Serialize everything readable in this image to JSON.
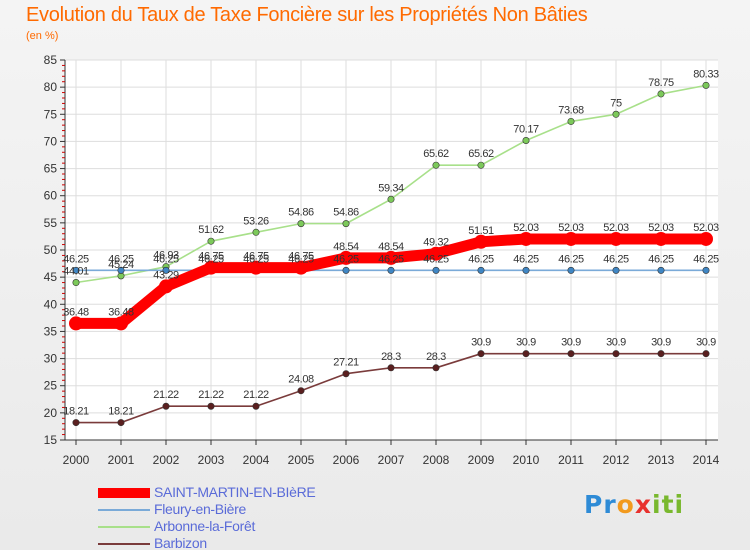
{
  "title": "Evolution du Taux de Taxe Foncière sur les Propriétés Non Bâties",
  "subtitle": "(en %)",
  "logo": {
    "text": "Proxiti",
    "letters": [
      {
        "ch": "P",
        "color": "#2e8bd6"
      },
      {
        "ch": "r",
        "color": "#2e8bd6"
      },
      {
        "ch": "o",
        "color": "#f29a1e"
      },
      {
        "ch": "x",
        "color": "#e8312e"
      },
      {
        "ch": "i",
        "color": "#79b82e"
      },
      {
        "ch": "t",
        "color": "#79b82e"
      },
      {
        "ch": "i",
        "color": "#79b82e"
      }
    ]
  },
  "chart_data": {
    "type": "line",
    "title": "Evolution du Taux de Taxe Foncière sur les Propriétés Non Bâties",
    "ylabel": "(en %)",
    "xlabel": "",
    "ylim": [
      15,
      85
    ],
    "yticks": [
      15,
      20,
      25,
      30,
      35,
      40,
      45,
      50,
      55,
      60,
      65,
      70,
      75,
      80,
      85
    ],
    "grid": true,
    "legend": "bottom-left",
    "x": [
      "2000",
      "2001",
      "2002",
      "2003",
      "2004",
      "2005",
      "2006",
      "2007",
      "2008",
      "2009",
      "2010",
      "2011",
      "2012",
      "2013",
      "2014"
    ],
    "series": [
      {
        "name": "SAINT-MARTIN-EN-BIèRE",
        "color": "#ff0000",
        "marker": "#ff0000",
        "values": [
          36.48,
          36.48,
          43.29,
          46.75,
          46.75,
          46.75,
          48.54,
          48.54,
          49.32,
          51.51,
          52.03,
          52.03,
          52.03,
          52.03,
          52.03
        ],
        "labels": [
          "36.48",
          "36.48",
          "43.29",
          "46.75",
          "46.75",
          "46.75",
          "48.54",
          "48.54",
          "49.32",
          "51.51",
          "52.03",
          "52.03",
          "52.03",
          "52.03",
          "52.03"
        ]
      },
      {
        "name": "Fleury-en-Bière",
        "color": "#7aaad8",
        "marker": "#3f86c4",
        "values": [
          46.25,
          46.25,
          46.25,
          46.25,
          46.25,
          46.25,
          46.25,
          46.25,
          46.25,
          46.25,
          46.25,
          46.25,
          46.25,
          46.25,
          46.25
        ],
        "labels": [
          "46.25",
          "46.25",
          "46.25",
          "46.25",
          "46.25",
          "46.25",
          "46.25",
          "46.25",
          "46.25",
          "46.25",
          "46.25",
          "46.25",
          "46.25",
          "46.25",
          "46.25"
        ]
      },
      {
        "name": "Arbonne-la-Forêt",
        "color": "#a8e08a",
        "marker": "#7cc95a",
        "values": [
          44.01,
          45.24,
          46.93,
          51.62,
          53.26,
          54.86,
          54.86,
          59.34,
          65.62,
          65.62,
          70.17,
          73.68,
          75,
          78.75,
          80.33
        ],
        "labels": [
          "44.01",
          "45.24",
          "46.93",
          "51.62",
          "53.26",
          "54.86",
          "54.86",
          "59.34",
          "65.62",
          "65.62",
          "70.17",
          "73.68",
          "75",
          "78.75",
          "80.33"
        ]
      },
      {
        "name": "Barbizon",
        "color": "#7a3b3b",
        "marker": "#5a1f1f",
        "values": [
          18.21,
          18.21,
          21.22,
          21.22,
          21.22,
          24.08,
          27.21,
          28.3,
          28.3,
          30.9,
          30.9,
          30.9,
          30.9,
          30.9,
          30.9
        ],
        "labels": [
          "18.21",
          "18.21",
          "21.22",
          "21.22",
          "21.22",
          "24.08",
          "27.21",
          "28.3",
          "28.3",
          "30.9",
          "30.9",
          "30.9",
          "30.9",
          "30.9",
          "30.9"
        ]
      }
    ]
  }
}
